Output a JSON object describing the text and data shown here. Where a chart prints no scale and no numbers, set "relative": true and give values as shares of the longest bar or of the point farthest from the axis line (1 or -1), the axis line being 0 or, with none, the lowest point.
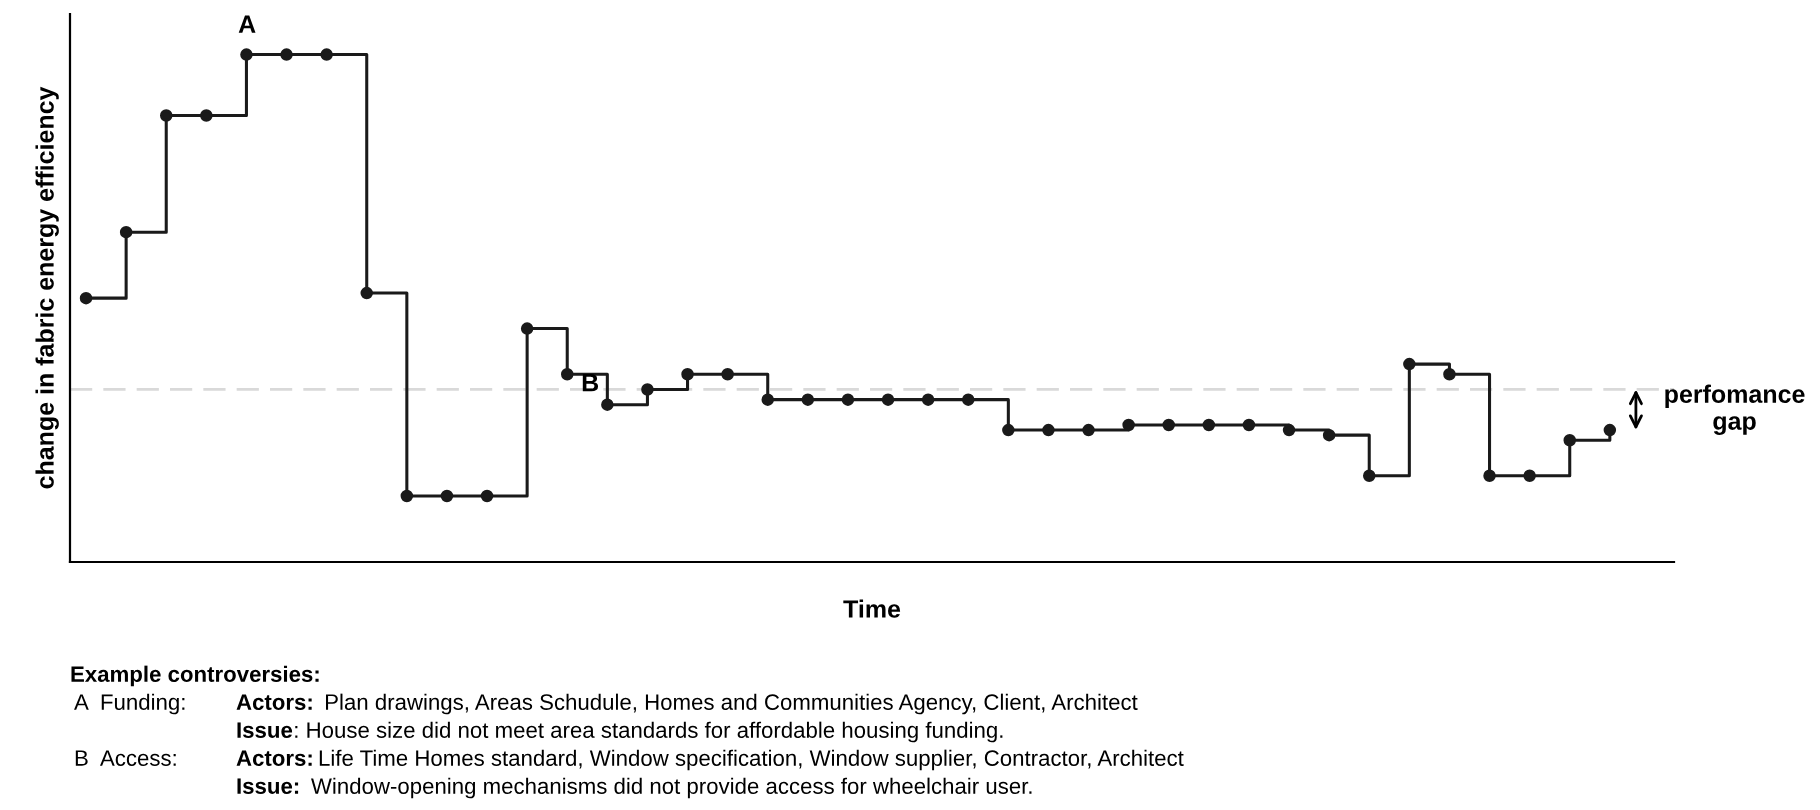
{
  "chart_data": {
    "type": "step",
    "relative": true,
    "ylabel": "change in fabric energy efficiency",
    "xlabel": "Time",
    "categories": [
      null,
      null,
      null,
      null,
      null,
      null,
      null,
      null,
      null,
      null,
      null,
      null,
      null,
      null,
      null,
      null,
      null,
      null,
      null,
      null,
      null,
      null,
      null,
      null,
      null,
      null,
      null,
      null,
      null,
      null,
      null,
      null,
      null,
      null,
      null,
      null,
      null,
      null,
      null
    ],
    "series": [
      {
        "color": "#1a1a1a",
        "values": [
          0.52,
          0.65,
          0.88,
          0.88,
          1,
          1,
          1,
          0.53,
          0.13,
          0.13,
          0.13,
          0.46,
          0.37,
          0.31,
          0.34,
          0.37,
          0.37,
          0.32,
          0.32,
          0.32,
          0.32,
          0.32,
          0.32,
          0.26,
          0.26,
          0.26,
          0.27,
          0.27,
          0.27,
          0.27,
          0.26,
          0.25,
          0.17,
          0.39,
          0.37,
          0.17,
          0.17,
          0.24,
          0.26
        ]
      }
    ],
    "marker": "circle",
    "line_style": "solid",
    "grid": false,
    "legend": false,
    "ref_lines": [
      {
        "axis": "y",
        "value": 0.34,
        "color": "#d9d9d9",
        "line_style": "dashed"
      }
    ],
    "annotations": [
      "perfomance\ngap",
      {
        "text": "A",
        "y": 1
      },
      {
        "text": "B",
        "y": 0.37
      },
      "Example controversies:",
      "A  Funding:",
      "Actors:",
      " Plan drawings, Areas Schudule, Homes and Communities Agency, Client, Architect",
      "Issue",
      ": House size did not meet area standards for affordable housing funding.",
      "B  Access:",
      "Actors:",
      "Life Time Homes standard, Window specification, Window supplier, Contractor, Architect",
      "Issue:",
      " Window-opening mechanisms did not provide access for wheelchair user."
    ]
  }
}
